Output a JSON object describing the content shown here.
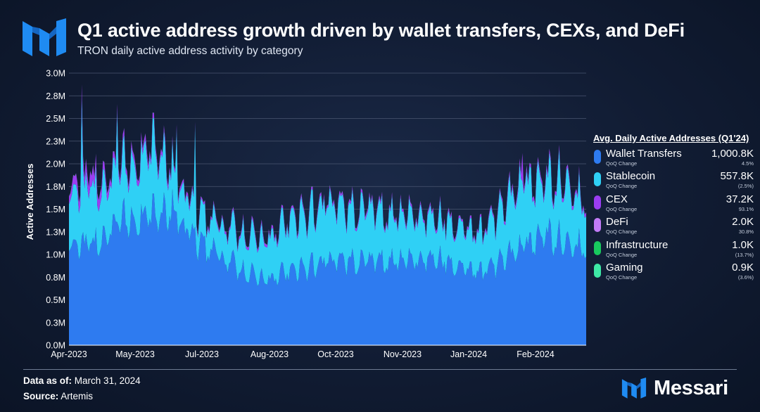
{
  "header": {
    "title": "Q1 active address growth driven by wallet transfers, CEXs, and DeFi",
    "subtitle": "TRON daily active address activity by category"
  },
  "chart_data": {
    "type": "area",
    "stacked": true,
    "ylabel": "Active Addresses",
    "ylim": [
      0,
      3000000
    ],
    "y_ticks": [
      "0.0M",
      "0.3M",
      "0.5M",
      "0.8M",
      "1.0M",
      "1.3M",
      "1.5M",
      "1.8M",
      "2.0M",
      "2.3M",
      "2.5M",
      "2.8M",
      "3.0M"
    ],
    "x_ticks": [
      "Apr-2023",
      "May-2023",
      "Jul-2023",
      "Aug-2023",
      "Oct-2023",
      "Nov-2023",
      "Jan-2024",
      "Feb-2024"
    ],
    "grid": true,
    "legend_position": "right",
    "series": [
      {
        "name": "Wallet Transfers",
        "color": "#2e7bf0",
        "x": [
          "2023-04-01",
          "2023-04-15",
          "2023-05-01",
          "2023-05-15",
          "2023-06-01",
          "2023-06-15",
          "2023-07-01",
          "2023-07-15",
          "2023-08-01",
          "2023-08-15",
          "2023-09-01",
          "2023-09-15",
          "2023-10-01",
          "2023-10-15",
          "2023-11-01",
          "2023-11-15",
          "2023-12-01",
          "2023-12-15",
          "2024-01-01",
          "2024-01-15",
          "2024-02-01",
          "2024-02-15",
          "2024-03-01",
          "2024-03-15",
          "2024-03-31"
        ],
        "values": [
          1150000,
          1080000,
          1300000,
          1400000,
          1430000,
          1470000,
          1130000,
          1020000,
          820000,
          730000,
          790000,
          850000,
          910000,
          920000,
          930000,
          920000,
          960000,
          950000,
          900000,
          790000,
          930000,
          1080000,
          1250000,
          1150000,
          1050000
        ]
      },
      {
        "name": "Stablecoin",
        "color": "#2fd0f5",
        "x": [
          "2023-04-01",
          "2023-04-15",
          "2023-05-01",
          "2023-05-15",
          "2023-06-01",
          "2023-06-15",
          "2023-07-01",
          "2023-07-15",
          "2023-08-01",
          "2023-08-15",
          "2023-09-01",
          "2023-09-15",
          "2023-10-01",
          "2023-10-15",
          "2023-11-01",
          "2023-11-15",
          "2023-12-01",
          "2023-12-15",
          "2024-01-01",
          "2024-01-15",
          "2024-02-01",
          "2024-02-15",
          "2024-03-01",
          "2024-03-15",
          "2024-03-31"
        ],
        "values": [
          580000,
          620000,
          560000,
          600000,
          720000,
          420000,
          320000,
          340000,
          400000,
          430000,
          530000,
          580000,
          620000,
          560000,
          560000,
          500000,
          490000,
          440000,
          450000,
          420000,
          560000,
          700000,
          600000,
          670000,
          480000
        ]
      },
      {
        "name": "CEX",
        "color": "#9b3df2",
        "x": [
          "2023-04-01",
          "2023-04-15",
          "2023-05-01",
          "2023-05-15",
          "2023-06-01",
          "2023-06-15",
          "2023-07-01",
          "2023-07-15",
          "2023-08-01",
          "2023-08-15",
          "2023-09-01",
          "2023-09-15",
          "2023-10-01",
          "2023-10-15",
          "2023-11-01",
          "2023-11-15",
          "2023-12-01",
          "2023-12-15",
          "2024-01-01",
          "2024-01-15",
          "2024-02-01",
          "2024-02-15",
          "2024-03-01",
          "2024-03-15",
          "2024-03-31"
        ],
        "values": [
          80000,
          150000,
          70000,
          60000,
          60000,
          40000,
          30000,
          25000,
          30000,
          30000,
          28000,
          28000,
          30000,
          30000,
          28000,
          28000,
          30000,
          28000,
          26000,
          25000,
          30000,
          45000,
          40000,
          38000,
          35000
        ]
      },
      {
        "name": "DeFi",
        "color": "#c27bf7",
        "x": [
          "2023-04-01",
          "2023-04-15",
          "2023-05-01",
          "2023-05-15",
          "2023-06-01",
          "2023-06-15",
          "2023-07-01",
          "2023-07-15",
          "2023-08-01",
          "2023-08-15",
          "2023-09-01",
          "2023-09-15",
          "2023-10-01",
          "2023-10-15",
          "2023-11-01",
          "2023-11-15",
          "2023-12-01",
          "2023-12-15",
          "2024-01-01",
          "2024-01-15",
          "2024-02-01",
          "2024-02-15",
          "2024-03-01",
          "2024-03-15",
          "2024-03-31"
        ],
        "values": [
          4000,
          4000,
          3000,
          3000,
          3000,
          2000,
          2000,
          2000,
          2000,
          2000,
          2000,
          2000,
          2000,
          2000,
          2000,
          2000,
          2000,
          2000,
          2000,
          2000,
          2000,
          2000,
          2000,
          2000,
          2000
        ]
      },
      {
        "name": "Infrastructure",
        "color": "#18c95e",
        "x": [
          "2023-04-01",
          "2023-04-15",
          "2023-05-01",
          "2023-05-15",
          "2023-06-01",
          "2023-06-15",
          "2023-07-01",
          "2023-07-15",
          "2023-08-01",
          "2023-08-15",
          "2023-09-01",
          "2023-09-15",
          "2023-10-01",
          "2023-10-15",
          "2023-11-01",
          "2023-11-15",
          "2023-12-01",
          "2023-12-15",
          "2024-01-01",
          "2024-01-15",
          "2024-02-01",
          "2024-02-15",
          "2024-03-01",
          "2024-03-15",
          "2024-03-31"
        ],
        "values": [
          1500,
          1500,
          1200,
          1200,
          1200,
          1100,
          1100,
          1100,
          1000,
          1000,
          1000,
          1000,
          1000,
          1000,
          1000,
          1000,
          1000,
          1000,
          1000,
          1000,
          1000,
          1000,
          1000,
          1000,
          1000
        ]
      },
      {
        "name": "Gaming",
        "color": "#3ee8a6",
        "x": [
          "2023-04-01",
          "2023-04-15",
          "2023-05-01",
          "2023-05-15",
          "2023-06-01",
          "2023-06-15",
          "2023-07-01",
          "2023-07-15",
          "2023-08-01",
          "2023-08-15",
          "2023-09-01",
          "2023-09-15",
          "2023-10-01",
          "2023-10-15",
          "2023-11-01",
          "2023-11-15",
          "2023-12-01",
          "2023-12-15",
          "2024-01-01",
          "2024-01-15",
          "2024-02-01",
          "2024-02-15",
          "2024-03-01",
          "2024-03-15",
          "2024-03-31"
        ],
        "values": [
          1200,
          1200,
          1100,
          1100,
          1000,
          1000,
          1000,
          1000,
          900,
          900,
          900,
          900,
          900,
          900,
          900,
          900,
          900,
          900,
          900,
          900,
          900,
          900,
          900,
          900,
          900
        ]
      }
    ]
  },
  "legend": {
    "title": "Avg. Daily Active Addresses (Q1'24)",
    "sub_label": "QoQ Change",
    "items": [
      {
        "name": "Wallet Transfers",
        "value": "1,000.8K",
        "change": "4.5%",
        "color": "#2e7bf0"
      },
      {
        "name": "Stablecoin",
        "value": "557.8K",
        "change": "(2.5%)",
        "color": "#2fd0f5"
      },
      {
        "name": "CEX",
        "value": "37.2K",
        "change": "93.1%",
        "color": "#9b3df2"
      },
      {
        "name": "DeFi",
        "value": "2.0K",
        "change": "30.8%",
        "color": "#c27bf7"
      },
      {
        "name": "Infrastructure",
        "value": "1.0K",
        "change": "(13.7%)",
        "color": "#18c95e"
      },
      {
        "name": "Gaming",
        "value": "0.9K",
        "change": "(3.6%)",
        "color": "#3ee8a6"
      }
    ]
  },
  "footer": {
    "data_as_of_label": "Data as of:",
    "data_as_of_value": "March 31, 2024",
    "source_label": "Source:",
    "source_value": "Artemis",
    "brand": "Messari"
  },
  "colors": {
    "brand_blue": "#1f8bf2",
    "grid": "#4a5670"
  },
  "icons": {
    "logo": "messari-logo-icon"
  }
}
